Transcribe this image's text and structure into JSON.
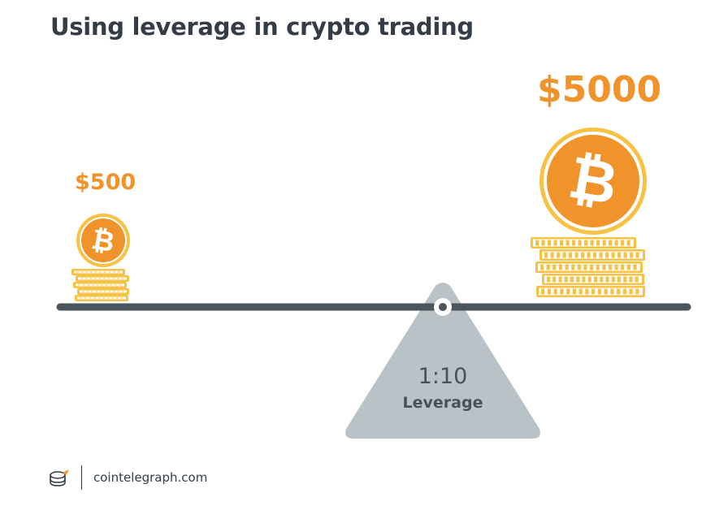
{
  "title": "Using leverage in crypto trading",
  "left_amount": "$500",
  "right_amount": "$5000",
  "fulcrum": {
    "ratio": "1:10",
    "label": "Leverage"
  },
  "footer": {
    "site": "cointelegraph.com"
  },
  "colors": {
    "orange": "#f0932b",
    "gold": "#f7c244",
    "beam": "#4a555d",
    "fulcrum": "#b8c2c7",
    "text": "#333c47"
  },
  "icons": [
    "bitcoin-coin-icon",
    "coin-stack-icon",
    "cointelegraph-logo-icon"
  ]
}
